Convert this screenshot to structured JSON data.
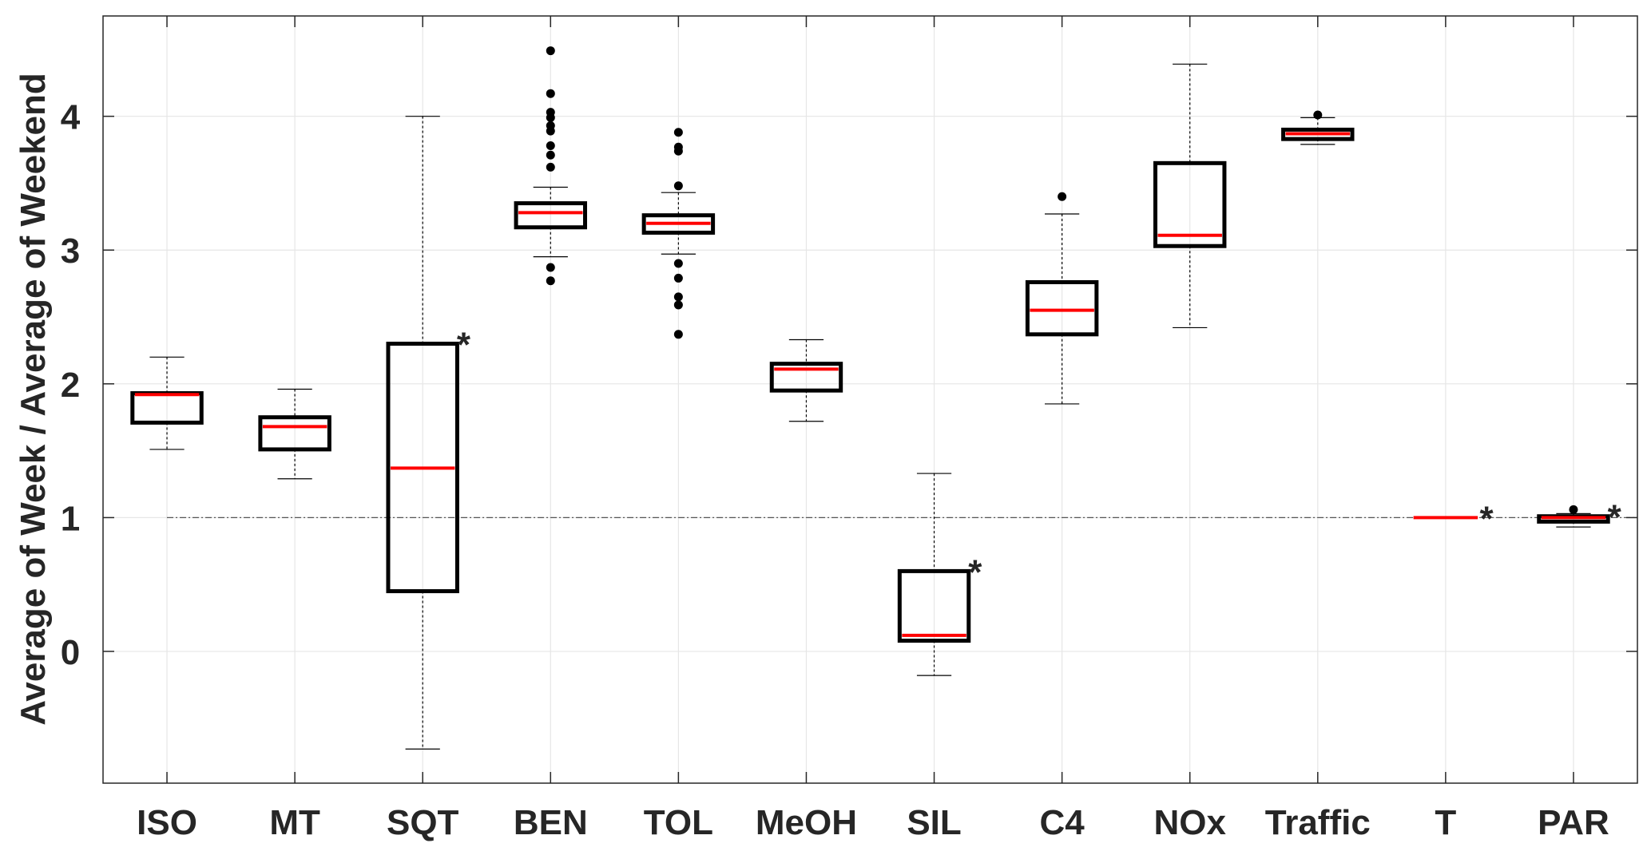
{
  "chart_data": {
    "type": "box",
    "title": "",
    "xlabel": "",
    "ylabel": "Average of Week  / Average of Weekend",
    "ylim": [
      -0.985,
      4.75
    ],
    "yticks": [
      0,
      1,
      2,
      3,
      4
    ],
    "ytick_labels": [
      "0",
      "1",
      "2",
      "3",
      "4"
    ],
    "grid": true,
    "reference_line": 1,
    "categories": [
      "ISO",
      "MT",
      "SQT",
      "BEN",
      "TOL",
      "MeOH",
      "SIL",
      "C4",
      "NOx",
      "Traffic",
      "T",
      "PAR"
    ],
    "boxes": [
      {
        "name": "ISO",
        "whisker_low": 1.51,
        "q1": 1.71,
        "median": 1.92,
        "q3": 1.93,
        "whisker_high": 2.2,
        "outliers": [],
        "star": false
      },
      {
        "name": "MT",
        "whisker_low": 1.29,
        "q1": 1.51,
        "median": 1.68,
        "q3": 1.75,
        "whisker_high": 1.96,
        "outliers": [],
        "star": false
      },
      {
        "name": "SQT",
        "whisker_low": -0.73,
        "q1": 0.45,
        "median": 1.37,
        "q3": 2.3,
        "whisker_high": 4.0,
        "outliers": [],
        "star": true
      },
      {
        "name": "BEN",
        "whisker_low": 2.95,
        "q1": 3.17,
        "median": 3.28,
        "q3": 3.35,
        "whisker_high": 3.47,
        "outliers": [
          4.49,
          4.17,
          4.03,
          3.99,
          3.93,
          3.89,
          3.78,
          3.71,
          3.62,
          2.87,
          2.77
        ],
        "star": false
      },
      {
        "name": "TOL",
        "whisker_low": 2.97,
        "q1": 3.13,
        "median": 3.2,
        "q3": 3.26,
        "whisker_high": 3.43,
        "outliers": [
          3.88,
          3.77,
          3.74,
          3.48,
          2.9,
          2.79,
          2.65,
          2.59,
          2.37
        ],
        "star": false
      },
      {
        "name": "MeOH",
        "whisker_low": 1.72,
        "q1": 1.95,
        "median": 2.11,
        "q3": 2.15,
        "whisker_high": 2.33,
        "outliers": [],
        "star": false
      },
      {
        "name": "SIL",
        "whisker_low": -0.18,
        "q1": 0.08,
        "median": 0.12,
        "q3": 0.6,
        "whisker_high": 1.33,
        "outliers": [],
        "star": true
      },
      {
        "name": "C4",
        "whisker_low": 1.85,
        "q1": 2.37,
        "median": 2.55,
        "q3": 2.76,
        "whisker_high": 3.27,
        "outliers": [
          3.4
        ],
        "star": false
      },
      {
        "name": "NOx",
        "whisker_low": 2.42,
        "q1": 3.03,
        "median": 3.11,
        "q3": 3.65,
        "whisker_high": 4.39,
        "outliers": [],
        "star": false
      },
      {
        "name": "Traffic",
        "whisker_low": 3.79,
        "q1": 3.83,
        "median": 3.87,
        "q3": 3.9,
        "whisker_high": 3.99,
        "outliers": [
          4.01
        ],
        "star": false
      },
      {
        "name": "T",
        "whisker_low": 1.0,
        "q1": 1.0,
        "median": 1.0,
        "q3": 1.0,
        "whisker_high": 1.0,
        "outliers": [],
        "star": true
      },
      {
        "name": "PAR",
        "whisker_low": 0.93,
        "q1": 0.97,
        "median": 1.0,
        "q3": 1.01,
        "whisker_high": 1.03,
        "outliers": [
          1.06
        ],
        "star": true
      }
    ],
    "star_symbol": "*",
    "colors": {
      "box": "#000000",
      "median": "#ff0000",
      "grid": "#e6e6e6",
      "axis": "#262626"
    }
  }
}
